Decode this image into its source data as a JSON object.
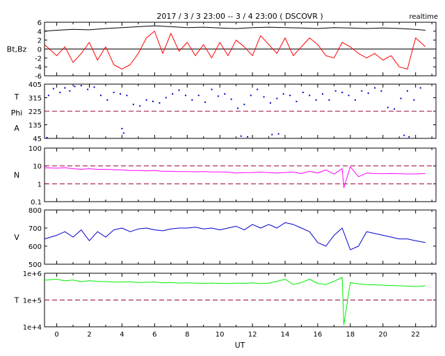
{
  "header": {
    "title": "2017 / 3 / 3  23:00 -- 3 / 4  23:00 ( DSCOVR )",
    "mode": "realtime"
  },
  "xaxis": {
    "label": "UT",
    "range": [
      -0.75,
      23.25
    ],
    "ticks": [
      "0",
      "2",
      "4",
      "6",
      "8",
      "10",
      "12",
      "14",
      "16",
      "18",
      "20",
      "22"
    ]
  },
  "colors": {
    "bt": "#000000",
    "bz": "#ff0000",
    "phi": "#0000cc",
    "ref": "#990033",
    "density": "#ff00ff",
    "speed": "#0000cc",
    "temperature": "#00ee00"
  },
  "chart_data": [
    {
      "type": "line",
      "panel": "magnetic-field",
      "ylabel": "Bt,Bz",
      "ylim": [
        -6,
        6
      ],
      "yticks": [
        "6",
        "4",
        "2",
        "0",
        "-2",
        "-4",
        "-6"
      ],
      "reference_lines": [
        0
      ],
      "series": [
        {
          "name": "Bt",
          "x": [
            -0.75,
            0,
            1,
            2,
            3,
            4,
            5,
            6,
            7,
            8,
            9,
            10,
            11,
            12,
            13,
            14,
            15,
            16,
            17,
            18,
            19,
            20,
            21,
            22,
            22.6
          ],
          "y": [
            4.0,
            4.2,
            4.4,
            4.3,
            4.6,
            4.8,
            5.0,
            5.2,
            5.0,
            4.8,
            4.9,
            4.7,
            4.6,
            4.8,
            4.9,
            4.8,
            4.7,
            4.6,
            4.8,
            4.7,
            4.6,
            4.7,
            4.6,
            4.4,
            4.2
          ]
        },
        {
          "name": "Bz",
          "x": [
            -0.75,
            0,
            0.5,
            1,
            1.5,
            2,
            2.5,
            3,
            3.5,
            4,
            4.5,
            5,
            5.5,
            6,
            6.5,
            7,
            7.5,
            8,
            8.5,
            9,
            9.5,
            10,
            10.5,
            11,
            11.5,
            12,
            12.5,
            13,
            13.5,
            14,
            14.5,
            15,
            15.5,
            16,
            16.5,
            17,
            17.5,
            18,
            18.5,
            19,
            19.5,
            20,
            20.5,
            21,
            21.5,
            22,
            22.6
          ],
          "y": [
            1.0,
            -1.5,
            0.5,
            -3.0,
            -1.0,
            1.5,
            -2.5,
            0.5,
            -3.5,
            -4.5,
            -3.5,
            -1.0,
            2.5,
            4.0,
            -1.0,
            3.5,
            -0.5,
            1.5,
            -1.5,
            1.0,
            -2.0,
            1.5,
            -1.5,
            2.0,
            0.5,
            -1.5,
            3.0,
            1.0,
            -1.0,
            2.5,
            -1.5,
            0.5,
            2.5,
            1.0,
            -1.5,
            -2.0,
            1.5,
            0.5,
            -1.0,
            -2.0,
            -1.0,
            -2.5,
            -1.5,
            -4.0,
            -4.5,
            2.5,
            0.5
          ]
        }
      ]
    },
    {
      "type": "scatter",
      "panel": "phi-angle",
      "ylabel_lines": [
        "T",
        "Phi",
        "A"
      ],
      "ylim": [
        45,
        405
      ],
      "yticks": [
        "405",
        "315",
        "225",
        "135",
        "45"
      ],
      "reference_lines": [
        225
      ],
      "series": [
        {
          "name": "Phi",
          "x": [
            -0.5,
            -0.2,
            0.2,
            0.5,
            0.8,
            1.1,
            1.5,
            1.9,
            2.3,
            2.7,
            3.1,
            3.5,
            3.9,
            4.3,
            4.7,
            5.1,
            5.5,
            5.9,
            6.3,
            6.7,
            7.1,
            7.5,
            7.9,
            8.3,
            8.7,
            9.1,
            9.5,
            9.9,
            10.3,
            10.7,
            11.1,
            11.5,
            11.9,
            12.3,
            12.7,
            13.1,
            13.5,
            13.9,
            14.3,
            14.7,
            15.1,
            15.5,
            15.9,
            16.3,
            16.7,
            17.1,
            17.5,
            17.9,
            18.3,
            18.7,
            19.1,
            19.5,
            19.9,
            20.3,
            20.7,
            21.1,
            21.5,
            21.9,
            22.3,
            4.0,
            4.1,
            -0.6,
            11.3,
            11.7,
            13.2,
            13.6,
            21.3,
            21.6
          ],
          "y": [
            330,
            375,
            350,
            380,
            360,
            390,
            395,
            370,
            385,
            330,
            300,
            350,
            340,
            330,
            270,
            260,
            300,
            290,
            280,
            315,
            340,
            365,
            330,
            300,
            330,
            285,
            370,
            325,
            340,
            305,
            245,
            270,
            330,
            370,
            320,
            280,
            310,
            340,
            330,
            290,
            350,
            330,
            300,
            340,
            300,
            360,
            350,
            330,
            300,
            360,
            345,
            380,
            360,
            250,
            240,
            310,
            360,
            300,
            380,
            110,
            80,
            50,
            60,
            55,
            70,
            75,
            65,
            55
          ]
        }
      ]
    },
    {
      "type": "line",
      "panel": "density",
      "ylabel": "N",
      "log_scale": true,
      "ylim": [
        0.1,
        100
      ],
      "yticks": [
        "100",
        "10",
        "1",
        "0.1"
      ],
      "reference_lines": [
        1,
        10
      ],
      "series": [
        {
          "name": "N",
          "x": [
            -0.75,
            0,
            0.5,
            1,
            1.5,
            2,
            2.5,
            3,
            3.5,
            4,
            4.5,
            5,
            5.5,
            6,
            6.5,
            7,
            7.5,
            8,
            8.5,
            9,
            9.5,
            10,
            10.5,
            11,
            11.5,
            12,
            12.5,
            13,
            13.5,
            14,
            14.5,
            15,
            15.5,
            16,
            16.5,
            17,
            17.5,
            17.6,
            18,
            18.5,
            19,
            19.5,
            20,
            20.5,
            21,
            21.5,
            22,
            22.6
          ],
          "y": [
            8,
            7.5,
            8,
            7,
            6.5,
            7,
            6.5,
            6.5,
            6.2,
            6,
            5.5,
            5.5,
            5.3,
            5.5,
            5.0,
            5.0,
            4.8,
            4.8,
            4.7,
            4.8,
            4.6,
            4.6,
            4.5,
            4.0,
            4.2,
            4.3,
            4.5,
            4.2,
            4.0,
            4.3,
            4.5,
            3.8,
            5,
            4,
            6,
            3.5,
            7,
            0.6,
            9,
            2.5,
            4,
            3.8,
            3.7,
            3.8,
            3.7,
            3.6,
            3.6,
            3.8
          ]
        }
      ]
    },
    {
      "type": "line",
      "panel": "speed",
      "ylabel": "V",
      "ylim": [
        500,
        800
      ],
      "yticks": [
        "800",
        "700",
        "600",
        "500"
      ],
      "series": [
        {
          "name": "V",
          "x": [
            -0.75,
            0,
            0.5,
            1,
            1.5,
            2,
            2.5,
            3,
            3.5,
            4,
            4.5,
            5,
            5.5,
            6,
            6.5,
            7,
            7.5,
            8,
            8.5,
            9,
            9.5,
            10,
            10.5,
            11,
            11.5,
            12,
            12.5,
            13,
            13.5,
            14,
            14.5,
            15,
            15.5,
            16,
            16.5,
            17,
            17.5,
            18,
            18.5,
            19,
            19.5,
            20,
            20.5,
            21,
            21.5,
            22,
            22.6
          ],
          "y": [
            640,
            660,
            680,
            650,
            690,
            630,
            680,
            650,
            690,
            700,
            680,
            695,
            700,
            690,
            685,
            695,
            700,
            700,
            705,
            695,
            700,
            690,
            700,
            710,
            690,
            720,
            700,
            720,
            700,
            730,
            720,
            700,
            680,
            620,
            600,
            660,
            700,
            580,
            600,
            680,
            670,
            660,
            650,
            640,
            640,
            630,
            620
          ]
        }
      ]
    },
    {
      "type": "line",
      "panel": "temperature",
      "ylabel": "T",
      "log_scale": true,
      "ylim": [
        10000,
        1000000
      ],
      "yticks": [
        "1e+6",
        "1e+5",
        "1e+4"
      ],
      "reference_lines": [
        100000
      ],
      "series": [
        {
          "name": "T",
          "x": [
            -0.75,
            0,
            0.5,
            1,
            1.5,
            2,
            2.5,
            3,
            3.5,
            4,
            4.5,
            5,
            5.5,
            6,
            6.5,
            7,
            7.5,
            8,
            8.5,
            9,
            9.5,
            10,
            10.5,
            11,
            11.5,
            12,
            12.5,
            13,
            13.5,
            14,
            14.5,
            15,
            15.5,
            16,
            16.5,
            17,
            17.5,
            17.6,
            18,
            18.5,
            19,
            19.5,
            20,
            20.5,
            21,
            21.5,
            22,
            22.6
          ],
          "y": [
            550000,
            600000,
            520000,
            560000,
            480000,
            530000,
            500000,
            490000,
            470000,
            470000,
            480000,
            450000,
            460000,
            470000,
            440000,
            450000,
            430000,
            440000,
            430000,
            420000,
            430000,
            420000,
            410000,
            430000,
            420000,
            440000,
            410000,
            430000,
            500000,
            600000,
            380000,
            450000,
            600000,
            420000,
            380000,
            500000,
            700000,
            12000,
            450000,
            400000,
            380000,
            370000,
            360000,
            350000,
            340000,
            330000,
            320000,
            340000
          ]
        }
      ]
    }
  ]
}
